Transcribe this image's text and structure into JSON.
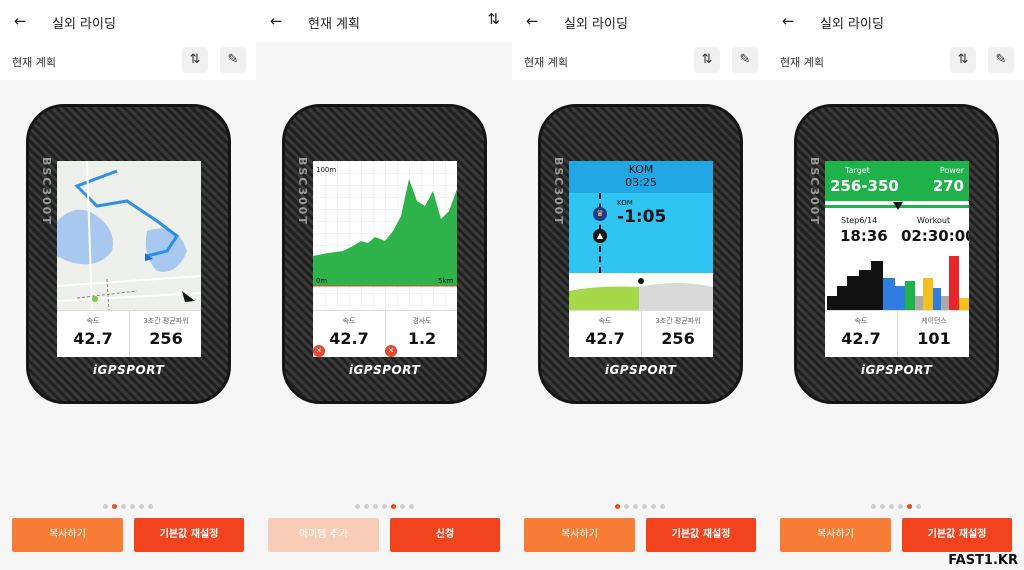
{
  "panels": [
    {
      "header_title": "실외 라이딩",
      "subbar_title": "현재 계획",
      "fields": [
        {
          "label": "속도",
          "value": "42.7"
        },
        {
          "label": "3초간 평균파워",
          "value": "256"
        }
      ],
      "buttons": [
        "복사하기",
        "기본값 재설정"
      ],
      "active_dot": 1
    },
    {
      "header_title": "현재 계획",
      "chart_labels": {
        "top": "100m",
        "left": "0m",
        "right": "5km"
      },
      "fields": [
        {
          "label": "속도",
          "value": "42.7"
        },
        {
          "label": "경사도",
          "value": "1.2"
        }
      ],
      "buttons": [
        "아이템 추가",
        "신청"
      ],
      "active_dot": 4
    },
    {
      "header_title": "실외 라이딩",
      "subbar_title": "현재 계획",
      "kom": {
        "title": "KOM",
        "time": "03:25",
        "label": "KOM",
        "delta": "-1:05"
      },
      "fields": [
        {
          "label": "속도",
          "value": "42.7"
        },
        {
          "label": "3초간 평균파워",
          "value": "256"
        }
      ],
      "buttons": [
        "복사하기",
        "기본값 재설정"
      ],
      "active_dot": 0
    },
    {
      "header_title": "실외 라이딩",
      "subbar_title": "현재 계획",
      "workout": {
        "target_label": "Target",
        "target": "256-350",
        "power_label": "Power",
        "power": "270",
        "step_label": "Step6/14",
        "step_time": "18:36",
        "workout_label": "Workout",
        "workout_time": "02:30:00"
      },
      "fields": [
        {
          "label": "속도",
          "value": "42.7"
        },
        {
          "label": "케이던스",
          "value": "101"
        }
      ],
      "buttons": [
        "복사하기",
        "기본값 재설정"
      ],
      "active_dot": 4
    }
  ],
  "device": {
    "brand": "iGPSPORT",
    "side": "BSC300T"
  },
  "watermark": "FAST1.KR",
  "colors": {
    "accent": "#f1431d",
    "secondary": "#f77c35"
  }
}
